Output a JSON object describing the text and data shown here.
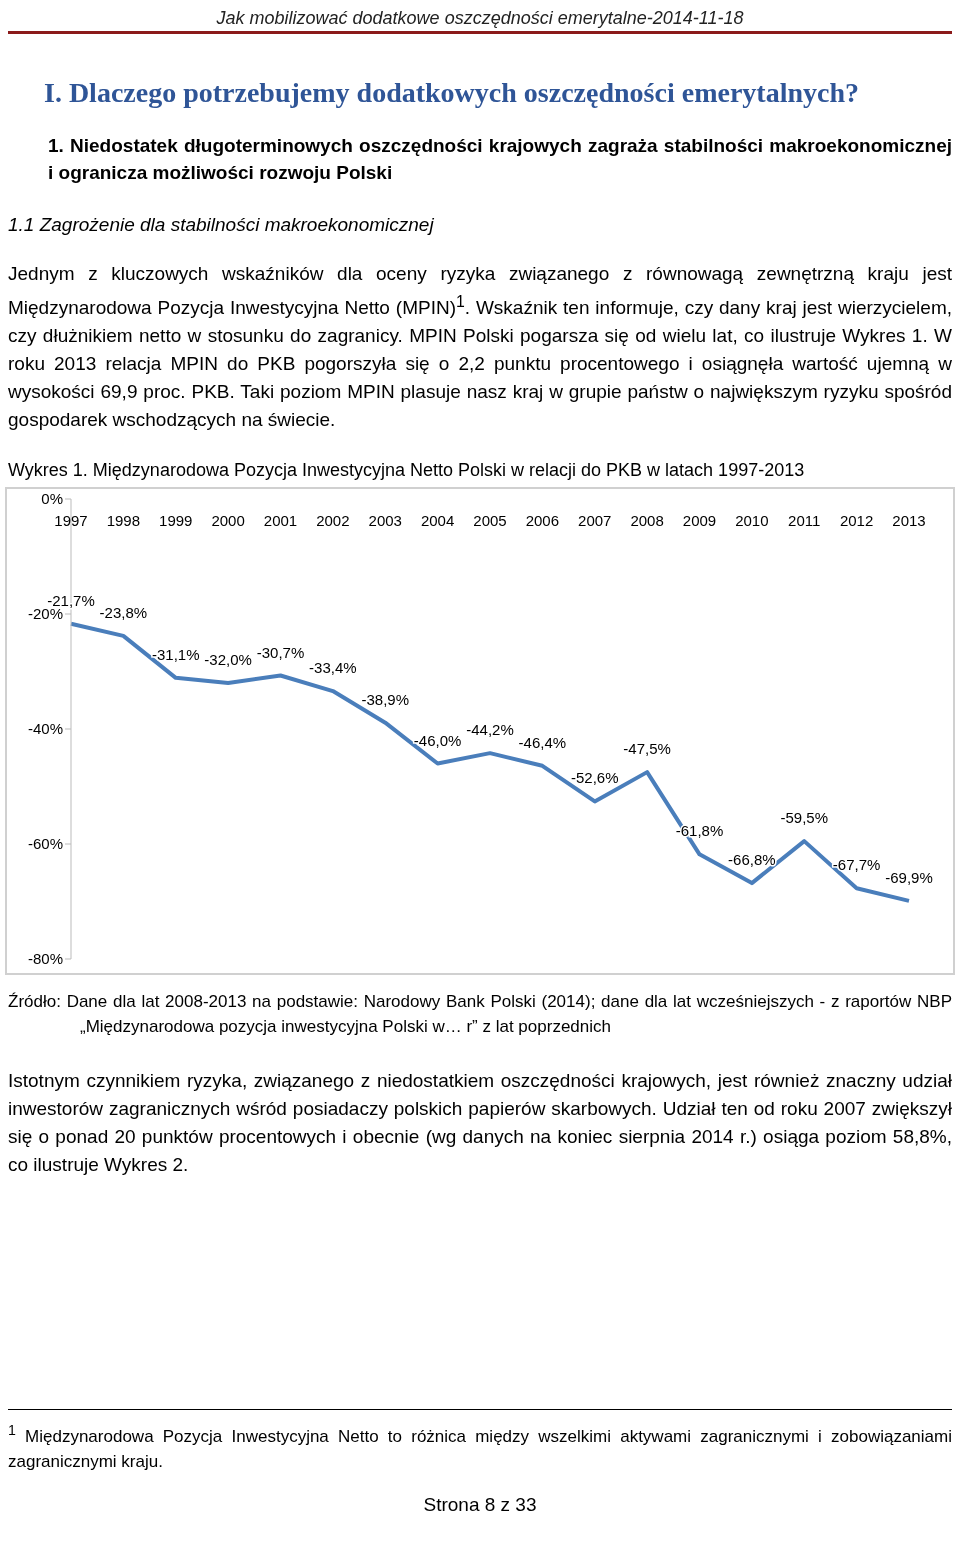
{
  "chart_data": {
    "type": "line",
    "title": "Wykres 1. Międzynarodowa Pozycja Inwestycyjna Netto Polski w relacji do PKB w latach 1997-2013",
    "categories": [
      "1997",
      "1998",
      "1999",
      "2000",
      "2001",
      "2002",
      "2003",
      "2004",
      "2005",
      "2006",
      "2007",
      "2008",
      "2009",
      "2010",
      "2011",
      "2012",
      "2013"
    ],
    "series": [
      {
        "color": "#4a7ebb",
        "values": [
          -21.7,
          -23.8,
          -31.1,
          -32.0,
          -30.7,
          -33.4,
          -38.9,
          -46.0,
          -44.2,
          -46.4,
          -52.6,
          -47.5,
          -61.8,
          -66.8,
          -59.5,
          -67.7,
          -69.9
        ],
        "value_labels": [
          "-21,7%",
          "-23,8%",
          "-31,1%",
          "-32,0%",
          "-30,7%",
          "-33,4%",
          "-38,9%",
          "-46,0%",
          "-44,2%",
          "-46,4%",
          "-52,6%",
          "-47,5%",
          "-61,8%",
          "-66,8%",
          "-59,5%",
          "-67,7%",
          "-69,9%"
        ]
      }
    ],
    "ylim": [
      -80,
      0
    ],
    "yticks": [
      {
        "value": 0,
        "label": "0%"
      },
      {
        "value": -20,
        "label": "-20%"
      },
      {
        "value": -40,
        "label": "-40%"
      },
      {
        "value": -60,
        "label": "-60%"
      },
      {
        "value": -80,
        "label": "-80%"
      }
    ],
    "grid": false,
    "legend": false,
    "marker": "none",
    "line_style": "solid",
    "annotations": [
      "Jak mobilizować dodatkowe oszczędności emerytalne-2014-11-18",
      "I. Dlaczego potrzebujemy dodatkowych oszczędności emerytalnych?",
      "1. Niedostatek długoterminowych oszczędności krajowych zagraża stabilności makroekonomicznej i ogranicza możliwości rozwoju Polski",
      "1.1 Zagrożenie dla stabilności makroekonomicznej",
      "Jednym z kluczowych wskaźników dla oceny ryzyka związanego z równowagą zewnętrzną kraju jest Międzynarodowa Pozycja Inwestycyjna Netto (MPIN)$^{1}$. Wskaźnik ten informuje, czy dany kraj jest wierzycielem, czy dłużnikiem netto w stosunku do zagranicy. MPIN Polski pogarsza się od wielu lat, co ilustruje Wykres 1. W roku 2013 relacja MPIN do PKB pogorszyła się o 2,2 punktu procentowego i osiągnęła wartość ujemną w wysokości 69,9 proc. PKB. Taki poziom MPIN plasuje nasz kraj w grupie państw o największym ryzyku spośród gospodarek wschodzących na świecie.",
      "Źródło: Dane dla lat 2008-2013 na podstawie: Narodowy Bank Polski (2014); dane dla lat wcześniejszych - z raportów NBP „Międzynarodowa pozycja inwestycyjna Polski w… r” z lat poprzednich",
      "Istotnym czynnikiem ryzyka, związanego z niedostatkiem oszczędności krajowych, jest również znaczny udział inwestorów zagranicznych wśród posiadaczy polskich papierów skarbowych. Udział ten od roku 2007 zwiększył się o ponad 20 punktów procentowych i obecnie (wg danych na koniec sierpnia 2014 r.) osiąga poziom 58,8%, co ilustruje Wykres 2.",
      "$^{1}$ Międzynarodowa Pozycja Inwestycyjna Netto to różnica między wszelkimi aktywami zagranicznymi i zobowiązaniami zagranicznymi kraju.",
      "Strona 8 z 33"
    ]
  }
}
